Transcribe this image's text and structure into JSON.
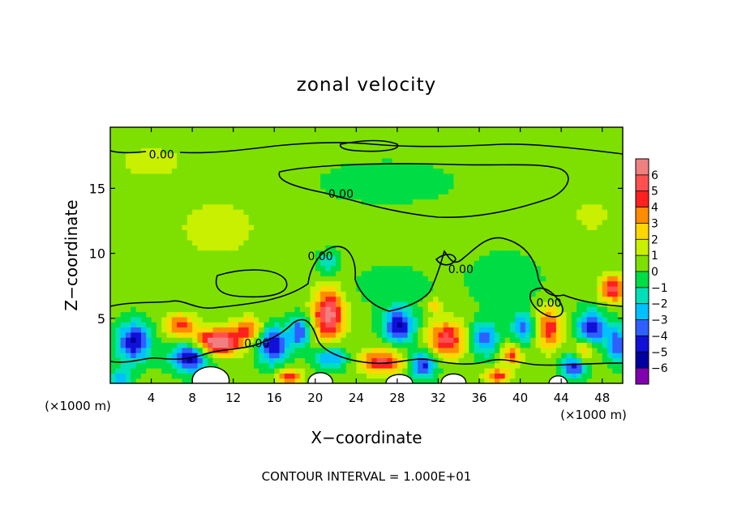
{
  "chart_data": {
    "type": "heatmap",
    "title": "zonal velocity",
    "xlabel": "X−coordinate",
    "ylabel": "Z−coordinate",
    "x_unit_left": "(×1000 m)",
    "x_unit_right": "(×1000 m)",
    "footer": "CONTOUR INTERVAL = 1.000E+01",
    "xlim": [
      0,
      50
    ],
    "ylim": [
      0,
      19.7
    ],
    "x_ticks": [
      4,
      8,
      12,
      16,
      20,
      24,
      28,
      32,
      36,
      40,
      44,
      48
    ],
    "y_ticks": [
      5,
      10,
      15
    ],
    "contour_labels": [
      {
        "text": "0.00",
        "x": 5,
        "z": 17.6
      },
      {
        "text": "0.00",
        "x": 22.5,
        "z": 14.6
      },
      {
        "text": "0.00",
        "x": 20.5,
        "z": 9.8
      },
      {
        "text": "0.00",
        "x": 34.2,
        "z": 8.8
      },
      {
        "text": "0.00",
        "x": 14.3,
        "z": 3.1
      },
      {
        "text": "0.00",
        "x": 42.8,
        "z": 6.2
      }
    ],
    "colorbar": {
      "levels": [
        "6",
        "5",
        "4",
        "3",
        "2",
        "1",
        "0",
        "−1",
        "−2",
        "−3",
        "−4",
        "−5",
        "−6"
      ],
      "colors": [
        "#f08080",
        "#ff5050",
        "#ff2020",
        "#ff8c00",
        "#ffd700",
        "#c8f000",
        "#7ee000",
        "#00dd44",
        "#00e0b8",
        "#00c0ff",
        "#2f60ff",
        "#1010d8",
        "#0000a0",
        "#8000b0"
      ],
      "vmin": -6,
      "vmax": 6
    },
    "features": [
      {
        "x": 10.5,
        "z": 3.2,
        "v": 6.5,
        "sx": 2.2,
        "sz": 1.0
      },
      {
        "x": 21.3,
        "z": 5.3,
        "v": 5.8,
        "sx": 1.5,
        "sz": 1.9
      },
      {
        "x": 32.8,
        "z": 3.4,
        "v": 4.8,
        "sx": 1.8,
        "sz": 1.4
      },
      {
        "x": 42.8,
        "z": 4.3,
        "v": 4.0,
        "sx": 1.3,
        "sz": 1.6
      },
      {
        "x": 49,
        "z": 7.3,
        "v": 5.0,
        "sx": 1.2,
        "sz": 1.0
      },
      {
        "x": 6.8,
        "z": 4.5,
        "v": 3.8,
        "sx": 1.5,
        "sz": 0.9
      },
      {
        "x": 13.5,
        "z": 4.2,
        "v": 3.5,
        "sx": 1.5,
        "sz": 0.9
      },
      {
        "x": 26.5,
        "z": 1.7,
        "v": 4.5,
        "sx": 2.2,
        "sz": 0.9
      },
      {
        "x": 17.5,
        "z": 0.5,
        "v": 4.0,
        "sx": 1.2,
        "sz": 0.6
      },
      {
        "x": 37.8,
        "z": 0.6,
        "v": 4.0,
        "sx": 1.2,
        "sz": 0.6
      },
      {
        "x": 39.2,
        "z": 2.2,
        "v": 3.5,
        "sx": 1.0,
        "sz": 0.8
      },
      {
        "x": 46.3,
        "z": 2.5,
        "v": 3.0,
        "sx": 1.0,
        "sz": 0.9
      },
      {
        "x": 31.6,
        "z": 6.0,
        "v": 2.5,
        "sx": 0.8,
        "sz": 0.5
      },
      {
        "x": 2.3,
        "z": 3.2,
        "v": -5.0,
        "sx": 1.6,
        "sz": 1.5
      },
      {
        "x": 7.8,
        "z": 2.0,
        "v": -5.5,
        "sx": 1.8,
        "sz": 1.1
      },
      {
        "x": 15.8,
        "z": 3.0,
        "v": -5.0,
        "sx": 1.5,
        "sz": 1.4
      },
      {
        "x": 18.5,
        "z": 4.0,
        "v": -4.0,
        "sx": 1.0,
        "sz": 1.2
      },
      {
        "x": 21.5,
        "z": 2.0,
        "v": -3.5,
        "sx": 1.5,
        "sz": 0.9
      },
      {
        "x": 28.2,
        "z": 4.5,
        "v": -5.0,
        "sx": 1.5,
        "sz": 1.3
      },
      {
        "x": 30.5,
        "z": 1.5,
        "v": -4.5,
        "sx": 1.3,
        "sz": 1.0
      },
      {
        "x": 36.5,
        "z": 3.5,
        "v": -3.8,
        "sx": 1.3,
        "sz": 1.3
      },
      {
        "x": 40.3,
        "z": 4.3,
        "v": -3.5,
        "sx": 1.1,
        "sz": 1.2
      },
      {
        "x": 45.2,
        "z": 1.3,
        "v": -4.5,
        "sx": 1.2,
        "sz": 0.9
      },
      {
        "x": 47.0,
        "z": 4.3,
        "v": -5.0,
        "sx": 1.4,
        "sz": 1.3
      },
      {
        "x": 49.5,
        "z": 3.0,
        "v": -4.0,
        "sx": 1.0,
        "sz": 1.4
      },
      {
        "x": 1.0,
        "z": 0.5,
        "v": -3.0,
        "sx": 1.0,
        "sz": 0.7
      },
      {
        "x": 21.3,
        "z": 9.3,
        "v": -2.0,
        "sx": 1.0,
        "sz": 0.9
      },
      {
        "x": 27.5,
        "z": 7.5,
        "v": -1.0,
        "sx": 3.5,
        "sz": 1.5
      },
      {
        "x": 38.5,
        "z": 8.0,
        "v": -1.0,
        "sx": 3.5,
        "sz": 2.0
      },
      {
        "x": 27.0,
        "z": 15.5,
        "v": -1.0,
        "sx": 6.0,
        "sz": 1.5
      },
      {
        "x": 10.5,
        "z": 12.0,
        "v": 1.5,
        "sx": 3.5,
        "sz": 2.0
      },
      {
        "x": 4.0,
        "z": 17.0,
        "v": 1.0,
        "sx": 4.0,
        "sz": 1.5
      },
      {
        "x": 47.0,
        "z": 13.0,
        "v": 0.8,
        "sx": 3.0,
        "sz": 2.0
      }
    ],
    "white_zones": [
      {
        "x": 9.8,
        "z": 0.35,
        "rx": 1.8,
        "rz": 0.8
      },
      {
        "x": 20.5,
        "z": 0.2,
        "rx": 1.2,
        "rz": 0.5
      },
      {
        "x": 28.2,
        "z": 0.15,
        "rx": 1.3,
        "rz": 0.4
      },
      {
        "x": 33.5,
        "z": 0.2,
        "rx": 1.2,
        "rz": 0.4
      },
      {
        "x": 43.7,
        "z": 0.1,
        "rx": 0.9,
        "rz": 0.35
      }
    ]
  }
}
